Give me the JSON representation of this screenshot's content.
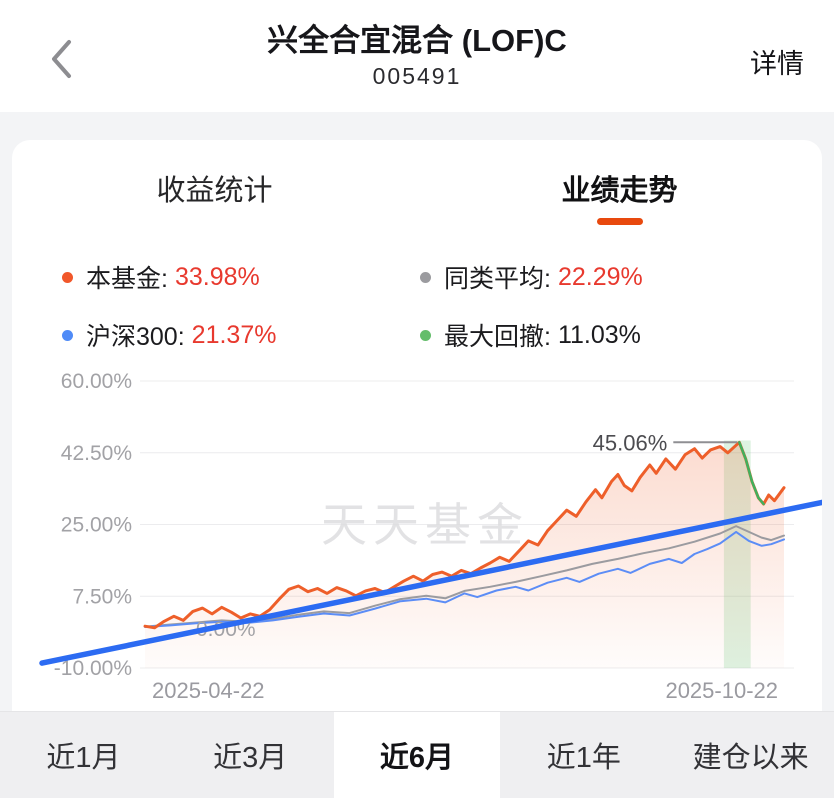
{
  "header": {
    "title": "兴全合宜混合 (LOF)C",
    "code": "005491",
    "detail_label": "详情"
  },
  "card": {
    "underline_color": "#e8490e",
    "tabs": [
      {
        "label": "收益统计",
        "active": false
      },
      {
        "label": "业绩走势",
        "active": true
      }
    ],
    "legend": [
      {
        "dot_color": "#f1572a",
        "label": "本基金:",
        "value": "33.98%",
        "value_color": "#e8392e"
      },
      {
        "dot_color": "#9b9b9f",
        "label": "同类平均:",
        "value": "22.29%",
        "value_color": "#e8392e"
      },
      {
        "dot_color": "#4f8bf7",
        "label": "沪深300:",
        "value": "21.37%",
        "value_color": "#e8392e"
      },
      {
        "dot_color": "#64bd6b",
        "label": "最大回撤:",
        "value": "11.03%",
        "value_color": "#1b1b1e"
      }
    ]
  },
  "chart_data": {
    "type": "line",
    "title": "业绩走势",
    "ylim": [
      -10,
      60
    ],
    "grid": true,
    "y_ticks": [
      {
        "label": "60.00%",
        "value": 60
      },
      {
        "label": "42.50%",
        "value": 42.5
      },
      {
        "label": "25.00%",
        "value": 25
      },
      {
        "label": "7.50%",
        "value": 7.5
      },
      {
        "label": "-10.00%",
        "value": -10
      }
    ],
    "zero_label": {
      "text": "0.00%",
      "value": 0
    },
    "x_labels": [
      "2025-04-22",
      "2025-10-22"
    ],
    "watermark": "天天基金",
    "peak_annotation": {
      "text": "45.06%",
      "value": 45.06,
      "x_frac": 0.93
    },
    "series": [
      {
        "name": "本基金",
        "color": "#ee5f2a",
        "width": 3,
        "final": 33.98,
        "points": [
          [
            0,
            0.2
          ],
          [
            0.015,
            -0.2
          ],
          [
            0.03,
            1.4
          ],
          [
            0.045,
            2.6
          ],
          [
            0.06,
            1.6
          ],
          [
            0.075,
            3.8
          ],
          [
            0.09,
            4.6
          ],
          [
            0.105,
            3.2
          ],
          [
            0.12,
            4.8
          ],
          [
            0.135,
            3.6
          ],
          [
            0.15,
            2.2
          ],
          [
            0.165,
            3.2
          ],
          [
            0.18,
            2.6
          ],
          [
            0.195,
            4.2
          ],
          [
            0.21,
            6.8
          ],
          [
            0.225,
            9.2
          ],
          [
            0.24,
            10.0
          ],
          [
            0.255,
            8.6
          ],
          [
            0.27,
            9.4
          ],
          [
            0.285,
            8.2
          ],
          [
            0.3,
            9.6
          ],
          [
            0.315,
            8.8
          ],
          [
            0.33,
            7.6
          ],
          [
            0.345,
            8.8
          ],
          [
            0.36,
            9.4
          ],
          [
            0.375,
            8.4
          ],
          [
            0.39,
            9.8
          ],
          [
            0.405,
            11.2
          ],
          [
            0.42,
            12.4
          ],
          [
            0.435,
            11.2
          ],
          [
            0.45,
            12.8
          ],
          [
            0.465,
            13.4
          ],
          [
            0.48,
            12.4
          ],
          [
            0.495,
            13.8
          ],
          [
            0.51,
            13.0
          ],
          [
            0.525,
            14.4
          ],
          [
            0.54,
            15.6
          ],
          [
            0.555,
            17.0
          ],
          [
            0.57,
            16.0
          ],
          [
            0.585,
            18.5
          ],
          [
            0.6,
            21.0
          ],
          [
            0.615,
            20.0
          ],
          [
            0.63,
            23.5
          ],
          [
            0.645,
            26.0
          ],
          [
            0.66,
            28.5
          ],
          [
            0.675,
            27.0
          ],
          [
            0.69,
            30.5
          ],
          [
            0.705,
            33.5
          ],
          [
            0.715,
            31.5
          ],
          [
            0.73,
            35.5
          ],
          [
            0.74,
            37.2
          ],
          [
            0.75,
            34.5
          ],
          [
            0.762,
            33.2
          ],
          [
            0.775,
            36.5
          ],
          [
            0.79,
            39.5
          ],
          [
            0.8,
            37.5
          ],
          [
            0.815,
            41.0
          ],
          [
            0.83,
            38.5
          ],
          [
            0.845,
            42.0
          ],
          [
            0.86,
            43.5
          ],
          [
            0.872,
            41.2
          ],
          [
            0.885,
            43.2
          ],
          [
            0.9,
            44.0
          ],
          [
            0.912,
            42.5
          ],
          [
            0.93,
            45.06
          ],
          [
            0.94,
            41.0
          ],
          [
            0.95,
            35.5
          ],
          [
            0.96,
            31.5
          ],
          [
            0.968,
            30.0
          ],
          [
            0.976,
            32.2
          ],
          [
            0.985,
            30.8
          ],
          [
            1,
            33.98
          ]
        ]
      },
      {
        "name": "同类平均",
        "color": "#9b9ba0",
        "width": 2,
        "final": 22.29,
        "points": [
          [
            0,
            0.1
          ],
          [
            0.04,
            0.6
          ],
          [
            0.08,
            1.1
          ],
          [
            0.12,
            1.6
          ],
          [
            0.16,
            1.3
          ],
          [
            0.2,
            2.0
          ],
          [
            0.24,
            3.0
          ],
          [
            0.28,
            3.8
          ],
          [
            0.32,
            3.4
          ],
          [
            0.36,
            5.2
          ],
          [
            0.4,
            6.8
          ],
          [
            0.44,
            7.6
          ],
          [
            0.47,
            7.0
          ],
          [
            0.5,
            8.8
          ],
          [
            0.54,
            9.8
          ],
          [
            0.58,
            11.0
          ],
          [
            0.62,
            12.4
          ],
          [
            0.66,
            13.8
          ],
          [
            0.7,
            15.4
          ],
          [
            0.74,
            16.6
          ],
          [
            0.78,
            18.0
          ],
          [
            0.82,
            19.2
          ],
          [
            0.86,
            20.8
          ],
          [
            0.9,
            22.8
          ],
          [
            0.925,
            24.6
          ],
          [
            0.945,
            23.2
          ],
          [
            0.965,
            21.8
          ],
          [
            0.98,
            21.2
          ],
          [
            1,
            22.29
          ]
        ]
      },
      {
        "name": "沪深300",
        "color": "#5c8df6",
        "width": 2,
        "final": 21.37,
        "points": [
          [
            0,
            0
          ],
          [
            0.04,
            0.4
          ],
          [
            0.08,
            0.9
          ],
          [
            0.12,
            1.3
          ],
          [
            0.16,
            1.0
          ],
          [
            0.2,
            1.6
          ],
          [
            0.24,
            2.5
          ],
          [
            0.28,
            3.3
          ],
          [
            0.32,
            2.8
          ],
          [
            0.36,
            4.5
          ],
          [
            0.4,
            6.3
          ],
          [
            0.44,
            6.9
          ],
          [
            0.47,
            6.0
          ],
          [
            0.5,
            8.2
          ],
          [
            0.52,
            7.3
          ],
          [
            0.55,
            8.9
          ],
          [
            0.58,
            9.8
          ],
          [
            0.6,
            8.9
          ],
          [
            0.63,
            10.8
          ],
          [
            0.66,
            12.0
          ],
          [
            0.68,
            11.0
          ],
          [
            0.71,
            13.0
          ],
          [
            0.74,
            14.2
          ],
          [
            0.76,
            13.2
          ],
          [
            0.79,
            15.4
          ],
          [
            0.82,
            16.6
          ],
          [
            0.84,
            15.6
          ],
          [
            0.86,
            17.8
          ],
          [
            0.88,
            19.0
          ],
          [
            0.9,
            20.4
          ],
          [
            0.925,
            23.2
          ],
          [
            0.945,
            21.0
          ],
          [
            0.965,
            19.8
          ],
          [
            0.98,
            20.2
          ],
          [
            1,
            21.37
          ]
        ]
      }
    ],
    "drawdown_band": {
      "color": "#68c77a",
      "opacity": 0.22,
      "start_frac": 0.906,
      "end_frac": 0.948,
      "top_value": 45.5,
      "label": "最大回撤",
      "value": "11.03%"
    },
    "drawdown_segment": {
      "color": "#41b05e",
      "width": 2.5,
      "points": [
        [
          0.93,
          45.06
        ],
        [
          0.94,
          41.0
        ],
        [
          0.95,
          35.5
        ],
        [
          0.96,
          31.5
        ],
        [
          0.968,
          30.0
        ]
      ]
    },
    "trend_line": {
      "color": "#2c6bf2",
      "width": 5.5,
      "points": [
        [
          0.037,
          -8.8
        ],
        [
          1,
          30.4
        ]
      ]
    }
  },
  "period_tabs": [
    {
      "label": "近1月",
      "active": false
    },
    {
      "label": "近3月",
      "active": false
    },
    {
      "label": "近6月",
      "active": true
    },
    {
      "label": "近1年",
      "active": false
    },
    {
      "label": "建仓以来",
      "active": false
    }
  ]
}
